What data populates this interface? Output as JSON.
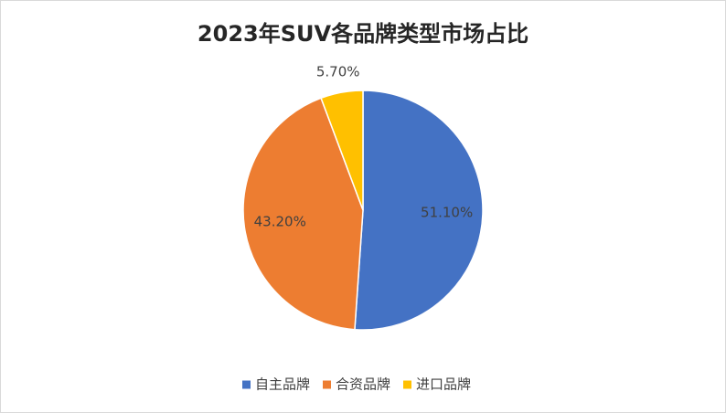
{
  "chart_data": {
    "type": "pie",
    "title": "2023年SUV各品牌类型市场占比",
    "categories": [
      "自主品牌",
      "合资品牌",
      "进口品牌"
    ],
    "values": [
      51.1,
      43.2,
      5.7
    ],
    "value_labels": [
      "51.10%",
      "43.20%",
      "5.70%"
    ],
    "colors": [
      "#4472c4",
      "#ed7d31",
      "#ffc000"
    ],
    "legend": "bottom"
  }
}
